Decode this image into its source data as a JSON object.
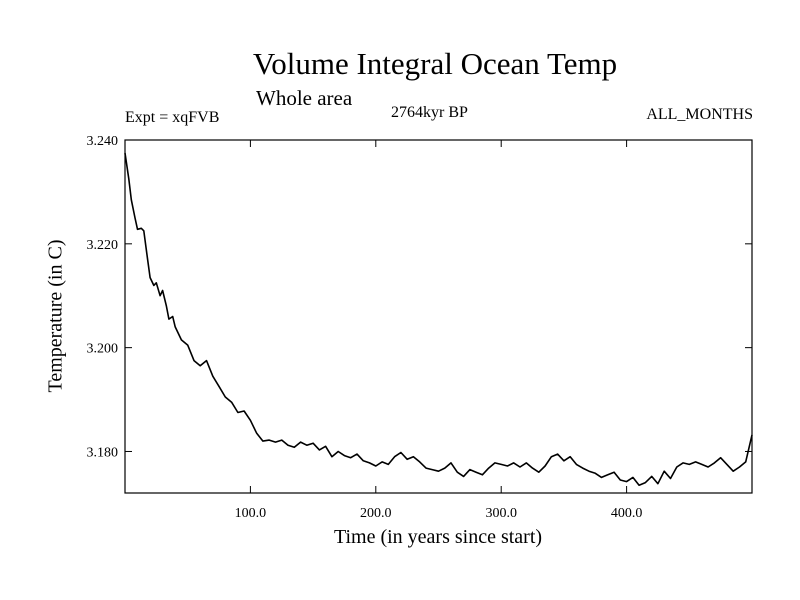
{
  "chart_data": {
    "type": "line",
    "title": "Volume Integral Ocean Temp",
    "subtitle": "Whole area",
    "experiment": "Expt = xqFVB",
    "period": "2764kyr BP",
    "months": "ALL_MONTHS",
    "xlabel": "Time (in years since start)",
    "ylabel": "Temperature (in C)",
    "xlim": [
      0,
      500
    ],
    "ylim": [
      3.172,
      3.24
    ],
    "xticks": [
      100,
      200,
      300,
      400
    ],
    "xtick_labels": [
      "100.0",
      "200.0",
      "300.0",
      "400.0"
    ],
    "yticks": [
      3.18,
      3.2,
      3.22,
      3.24
    ],
    "ytick_labels": [
      "3.180",
      "3.200",
      "3.220",
      "3.240"
    ],
    "series": [
      {
        "name": "Volume Integral Ocean Temp",
        "x": [
          0,
          3,
          5,
          8,
          10,
          13,
          15,
          18,
          20,
          23,
          25,
          28,
          30,
          33,
          35,
          38,
          40,
          45,
          50,
          55,
          60,
          65,
          70,
          75,
          80,
          85,
          90,
          95,
          100,
          105,
          110,
          115,
          120,
          125,
          130,
          135,
          140,
          145,
          150,
          155,
          160,
          165,
          170,
          175,
          180,
          185,
          190,
          195,
          200,
          205,
          210,
          215,
          220,
          225,
          230,
          235,
          240,
          245,
          250,
          255,
          260,
          265,
          270,
          275,
          280,
          285,
          290,
          295,
          300,
          305,
          310,
          315,
          320,
          325,
          330,
          335,
          340,
          345,
          350,
          355,
          360,
          365,
          370,
          375,
          380,
          385,
          390,
          395,
          400,
          405,
          410,
          415,
          420,
          425,
          430,
          435,
          440,
          445,
          450,
          455,
          460,
          465,
          470,
          475,
          480,
          485,
          490,
          495,
          500
        ],
        "values": [
          3.2375,
          3.2325,
          3.2285,
          3.225,
          3.2228,
          3.223,
          3.2225,
          3.217,
          3.2135,
          3.212,
          3.2125,
          3.21,
          3.211,
          3.208,
          3.2055,
          3.206,
          3.204,
          3.2015,
          3.2005,
          3.1975,
          3.1965,
          3.1975,
          3.1945,
          3.1925,
          3.1905,
          3.1895,
          3.1875,
          3.1878,
          3.186,
          3.1835,
          3.182,
          3.1822,
          3.1818,
          3.1822,
          3.1812,
          3.1808,
          3.1818,
          3.1812,
          3.1816,
          3.1803,
          3.181,
          3.179,
          3.18,
          3.1792,
          3.1788,
          3.1795,
          3.1782,
          3.1778,
          3.1772,
          3.178,
          3.1775,
          3.179,
          3.1798,
          3.1785,
          3.179,
          3.178,
          3.1768,
          3.1765,
          3.1762,
          3.1768,
          3.1778,
          3.176,
          3.1752,
          3.1765,
          3.176,
          3.1755,
          3.1768,
          3.1778,
          3.1775,
          3.1772,
          3.1778,
          3.177,
          3.1778,
          3.1768,
          3.176,
          3.1772,
          3.179,
          3.1795,
          3.1782,
          3.179,
          3.1775,
          3.1768,
          3.1762,
          3.1758,
          3.175,
          3.1755,
          3.176,
          3.1745,
          3.1742,
          3.175,
          3.1735,
          3.174,
          3.1752,
          3.1738,
          3.1762,
          3.1748,
          3.177,
          3.1778,
          3.1775,
          3.178,
          3.1775,
          3.177,
          3.1778,
          3.1788,
          3.1775,
          3.1762,
          3.177,
          3.178,
          3.1832
        ]
      }
    ]
  }
}
